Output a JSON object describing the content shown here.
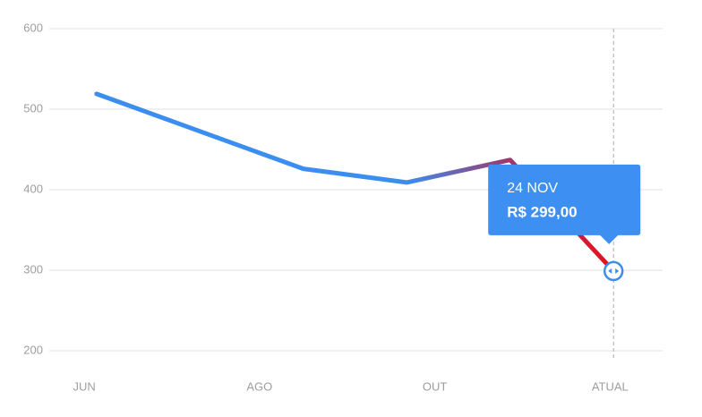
{
  "chart_data": {
    "type": "line",
    "x": [
      0.14,
      2.5,
      3.68,
      4.86,
      6.04
    ],
    "series": [
      {
        "values": [
          519,
          426,
          409,
          437,
          299
        ],
        "colors": [
          "#3b8eef",
          "#a0366a",
          "#e8101c"
        ]
      }
    ],
    "xlim": [
      -0.4,
      6.6
    ],
    "xticks": [
      {
        "value": 0,
        "label": "JUN"
      },
      {
        "value": 2,
        "label": "AGO"
      },
      {
        "value": 4,
        "label": "OUT"
      },
      {
        "value": 6,
        "label": "ATUAL"
      }
    ],
    "ylim": [
      200,
      600
    ],
    "yticks": [
      200,
      300,
      400,
      500,
      600
    ],
    "grid": true,
    "tooltip": {
      "title": "24 NOV",
      "value_label": "R$ 299,00"
    }
  }
}
